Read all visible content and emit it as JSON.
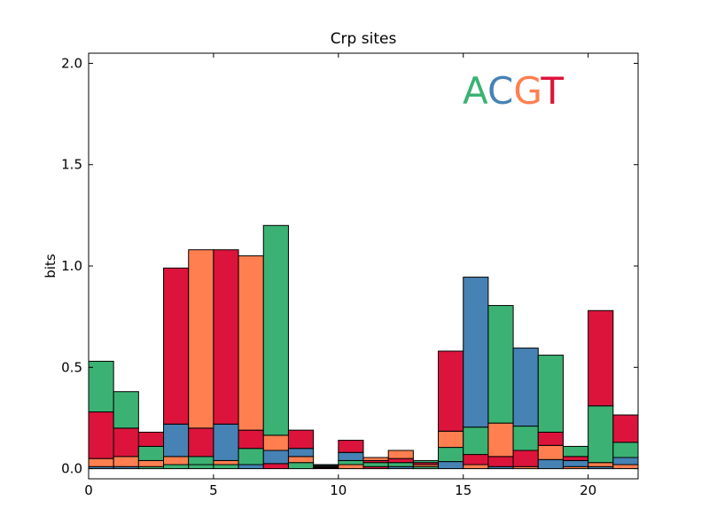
{
  "chart_data": {
    "type": "bar",
    "stacked": true,
    "title": "Crp sites",
    "xlabel": "",
    "ylabel": "bits",
    "xlim": [
      0,
      22
    ],
    "ylim": [
      -0.05,
      2.05
    ],
    "xticks": [
      0,
      5,
      10,
      15,
      20
    ],
    "yticks": [
      0.0,
      0.5,
      1.0,
      1.5,
      2.0
    ],
    "xtick_labels": [
      "0",
      "5",
      "10",
      "15",
      "20"
    ],
    "ytick_labels": [
      "0.0",
      "0.5",
      "1.0",
      "1.5",
      "2.0"
    ],
    "grid": false,
    "legend_position": "top-right",
    "colors": {
      "A": "#3bb273",
      "C": "#4682b4",
      "G": "#ff7f50",
      "T": "#dc143c"
    },
    "legend": [
      {
        "letter": "A",
        "color": "#3bb273"
      },
      {
        "letter": "C",
        "color": "#4682b4"
      },
      {
        "letter": "G",
        "color": "#ff7f50"
      },
      {
        "letter": "T",
        "color": "#dc143c"
      }
    ],
    "positions": [
      {
        "x": 0,
        "stack": [
          [
            "C",
            0.01
          ],
          [
            "G",
            0.04
          ],
          [
            "T",
            0.23
          ],
          [
            "A",
            0.25
          ]
        ]
      },
      {
        "x": 1,
        "stack": [
          [
            "C",
            0.01
          ],
          [
            "G",
            0.05
          ],
          [
            "T",
            0.14
          ],
          [
            "A",
            0.18
          ]
        ]
      },
      {
        "x": 2,
        "stack": [
          [
            "A",
            0.01
          ],
          [
            "G",
            0.03
          ],
          [
            "A",
            0.07
          ],
          [
            "T",
            0.07
          ]
        ]
      },
      {
        "x": 3,
        "stack": [
          [
            "A",
            0.02
          ],
          [
            "G",
            0.04
          ],
          [
            "C",
            0.16
          ],
          [
            "T",
            0.77
          ]
        ]
      },
      {
        "x": 4,
        "stack": [
          [
            "A",
            0.02
          ],
          [
            "A",
            0.04
          ],
          [
            "T",
            0.14
          ],
          [
            "G",
            0.88
          ]
        ]
      },
      {
        "x": 5,
        "stack": [
          [
            "A",
            0.02
          ],
          [
            "G",
            0.02
          ],
          [
            "C",
            0.18
          ],
          [
            "T",
            0.86
          ]
        ]
      },
      {
        "x": 6,
        "stack": [
          [
            "C",
            0.02
          ],
          [
            "A",
            0.08
          ],
          [
            "T",
            0.09
          ],
          [
            "G",
            0.86
          ]
        ]
      },
      {
        "x": 7,
        "stack": [
          [
            "T",
            0.025
          ],
          [
            "C",
            0.065
          ],
          [
            "G",
            0.075
          ],
          [
            "A",
            1.035
          ]
        ]
      },
      {
        "x": 8,
        "stack": [
          [
            "A",
            0.03
          ],
          [
            "G",
            0.03
          ],
          [
            "C",
            0.04
          ],
          [
            "T",
            0.09
          ]
        ]
      },
      {
        "x": 9,
        "stack": [
          [
            "T",
            0.005
          ],
          [
            "G",
            0.005
          ],
          [
            "A",
            0.005
          ],
          [
            "C",
            0.005
          ]
        ]
      },
      {
        "x": 10,
        "stack": [
          [
            "G",
            0.02
          ],
          [
            "A",
            0.02
          ],
          [
            "C",
            0.04
          ],
          [
            "T",
            0.06
          ]
        ]
      },
      {
        "x": 11,
        "stack": [
          [
            "T",
            0.01
          ],
          [
            "A",
            0.02
          ],
          [
            "T",
            0.01
          ],
          [
            "G",
            0.015
          ]
        ]
      },
      {
        "x": 12,
        "stack": [
          [
            "C",
            0.01
          ],
          [
            "A",
            0.02
          ],
          [
            "T",
            0.02
          ],
          [
            "G",
            0.04
          ]
        ]
      },
      {
        "x": 13,
        "stack": [
          [
            "A",
            0.01
          ],
          [
            "G",
            0.01
          ],
          [
            "T",
            0.01
          ],
          [
            "A",
            0.01
          ]
        ]
      },
      {
        "x": 14,
        "stack": [
          [
            "C",
            0.035
          ],
          [
            "A",
            0.07
          ],
          [
            "G",
            0.08
          ],
          [
            "T",
            0.395
          ]
        ]
      },
      {
        "x": 15,
        "stack": [
          [
            "G",
            0.02
          ],
          [
            "T",
            0.05
          ],
          [
            "A",
            0.135
          ],
          [
            "C",
            0.74
          ]
        ]
      },
      {
        "x": 16,
        "stack": [
          [
            "C",
            0.01
          ],
          [
            "T",
            0.05
          ],
          [
            "G",
            0.165
          ],
          [
            "A",
            0.58
          ]
        ]
      },
      {
        "x": 17,
        "stack": [
          [
            "G",
            0.01
          ],
          [
            "T",
            0.08
          ],
          [
            "A",
            0.12
          ],
          [
            "C",
            0.385
          ]
        ]
      },
      {
        "x": 18,
        "stack": [
          [
            "C",
            0.045
          ],
          [
            "G",
            0.07
          ],
          [
            "T",
            0.065
          ],
          [
            "A",
            0.38
          ]
        ]
      },
      {
        "x": 19,
        "stack": [
          [
            "G",
            0.01
          ],
          [
            "C",
            0.03
          ],
          [
            "T",
            0.02
          ],
          [
            "A",
            0.05
          ]
        ]
      },
      {
        "x": 20,
        "stack": [
          [
            "C",
            0.01
          ],
          [
            "G",
            0.02
          ],
          [
            "A",
            0.28
          ],
          [
            "T",
            0.47
          ]
        ]
      },
      {
        "x": 21,
        "stack": [
          [
            "G",
            0.02
          ],
          [
            "C",
            0.035
          ],
          [
            "A",
            0.075
          ],
          [
            "T",
            0.135
          ]
        ]
      }
    ]
  }
}
